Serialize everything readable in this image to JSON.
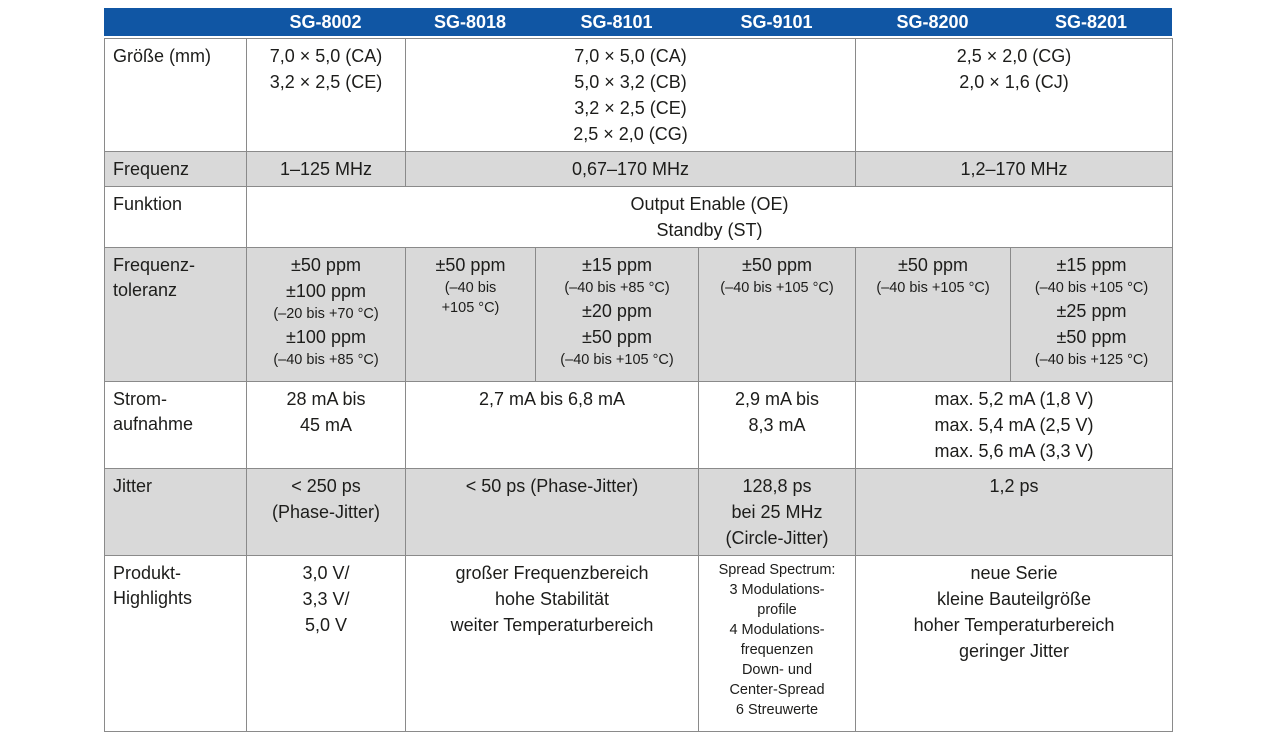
{
  "table": {
    "header": {
      "columns": [
        "",
        "SG-8002",
        "SG-8018",
        "SG-8101",
        "SG-9101",
        "SG-8200",
        "SG-8201"
      ],
      "background": "#1056a4",
      "text_color": "#ffffff"
    },
    "stripe_color": "#d9d9d9",
    "border_color": "#8a8a8a",
    "text_color": "#1d1d1b",
    "rows": [
      {
        "label_lines": [
          "Größe (mm)"
        ],
        "shaded": false,
        "cells": [
          {
            "colspan": 1,
            "lines": [
              {
                "text": "7,0 × 5,0 (CA)"
              },
              {
                "text": "3,2 × 2,5 (CE)"
              }
            ]
          },
          {
            "colspan": 3,
            "lines": [
              {
                "text": "7,0 × 5,0 (CA)"
              },
              {
                "text": "5,0 × 3,2 (CB)"
              },
              {
                "text": "3,2 × 2,5 (CE)"
              },
              {
                "text": "2,5 × 2,0 (CG)"
              }
            ]
          },
          {
            "colspan": 2,
            "lines": [
              {
                "text": "2,5 × 2,0 (CG)"
              },
              {
                "text": "2,0 × 1,6 (CJ)"
              }
            ]
          }
        ]
      },
      {
        "label_lines": [
          "Frequenz"
        ],
        "shaded": true,
        "cells": [
          {
            "colspan": 1,
            "lines": [
              {
                "text": "1–125 MHz"
              }
            ]
          },
          {
            "colspan": 3,
            "lines": [
              {
                "text": "0,67–170 MHz"
              }
            ]
          },
          {
            "colspan": 2,
            "lines": [
              {
                "text": "1,2–170 MHz"
              }
            ]
          }
        ]
      },
      {
        "label_lines": [
          "Funktion"
        ],
        "shaded": false,
        "cells": [
          {
            "colspan": 6,
            "lines": [
              {
                "text": "Output Enable (OE)"
              },
              {
                "text": "Standby (ST)"
              }
            ]
          }
        ]
      },
      {
        "label_lines": [
          "Frequenz-",
          "toleranz"
        ],
        "shaded": true,
        "cells": [
          {
            "colspan": 1,
            "lines": [
              {
                "text": "±50 ppm"
              },
              {
                "text": "±100 ppm"
              },
              {
                "text": "(–20 bis +70 °C)",
                "small": true
              },
              {
                "text": "±100 ppm"
              },
              {
                "text": "(–40 bis +85 °C)",
                "small": true
              }
            ]
          },
          {
            "colspan": 1,
            "lines": [
              {
                "text": "±50 ppm"
              },
              {
                "text": "(–40 bis",
                "small": true
              },
              {
                "text": "+105 °C)",
                "small": true
              }
            ]
          },
          {
            "colspan": 1,
            "lines": [
              {
                "text": "±15 ppm"
              },
              {
                "text": "(–40 bis +85 °C)",
                "small": true
              },
              {
                "text": "±20 ppm"
              },
              {
                "text": "±50 ppm"
              },
              {
                "text": "(–40 bis +105 °C)",
                "small": true
              }
            ]
          },
          {
            "colspan": 1,
            "lines": [
              {
                "text": "±50 ppm"
              },
              {
                "text": "(–40 bis +105 °C)",
                "small": true
              }
            ]
          },
          {
            "colspan": 1,
            "lines": [
              {
                "text": "±50 ppm"
              },
              {
                "text": "(–40 bis +105 °C)",
                "small": true
              }
            ]
          },
          {
            "colspan": 1,
            "lines": [
              {
                "text": "±15 ppm"
              },
              {
                "text": "(–40 bis +105 °C)",
                "small": true
              },
              {
                "text": "±25 ppm"
              },
              {
                "text": "±50 ppm"
              },
              {
                "text": "(–40 bis +125 °C)",
                "small": true
              }
            ]
          }
        ]
      },
      {
        "label_lines": [
          "Strom-",
          "aufnahme"
        ],
        "shaded": false,
        "cells": [
          {
            "colspan": 1,
            "lines": [
              {
                "text": "28 mA bis"
              },
              {
                "text": "45 mA"
              }
            ]
          },
          {
            "colspan": 2,
            "lines": [
              {
                "text": "2,7 mA bis 6,8 mA"
              }
            ]
          },
          {
            "colspan": 1,
            "lines": [
              {
                "text": "2,9 mA bis"
              },
              {
                "text": "8,3 mA"
              }
            ]
          },
          {
            "colspan": 2,
            "lines": [
              {
                "text": "max. 5,2 mA (1,8 V)"
              },
              {
                "text": "max. 5,4 mA (2,5 V)"
              },
              {
                "text": "max. 5,6 mA (3,3 V)"
              }
            ]
          }
        ]
      },
      {
        "label_lines": [
          "Jitter"
        ],
        "shaded": true,
        "cells": [
          {
            "colspan": 1,
            "lines": [
              {
                "text": "< 250 ps"
              },
              {
                "text": "(Phase-Jitter)"
              }
            ]
          },
          {
            "colspan": 2,
            "lines": [
              {
                "text": "< 50 ps (Phase-Jitter)"
              }
            ]
          },
          {
            "colspan": 1,
            "lines": [
              {
                "text": "128,8 ps"
              },
              {
                "text": "bei 25 MHz"
              },
              {
                "text": "(Circle-Jitter)"
              }
            ]
          },
          {
            "colspan": 2,
            "lines": [
              {
                "text": "1,2 ps"
              }
            ]
          }
        ]
      },
      {
        "label_lines": [
          "Produkt-",
          "Highlights"
        ],
        "shaded": false,
        "cells": [
          {
            "colspan": 1,
            "lines": [
              {
                "text": "3,0 V/"
              },
              {
                "text": "3,3 V/"
              },
              {
                "text": "5,0 V"
              }
            ]
          },
          {
            "colspan": 2,
            "lines": [
              {
                "text": "großer Frequenzbereich"
              },
              {
                "text": "hohe Stabilität"
              },
              {
                "text": "weiter Temperaturbereich"
              }
            ]
          },
          {
            "colspan": 1,
            "lines": [
              {
                "text": "Spread Spectrum:",
                "small": true
              },
              {
                "text": "3 Modulations-",
                "small": true
              },
              {
                "text": "profile",
                "small": true
              },
              {
                "text": "4 Modulations-",
                "small": true
              },
              {
                "text": "frequenzen",
                "small": true
              },
              {
                "text": "Down- und",
                "small": true
              },
              {
                "text": "Center-Spread",
                "small": true
              },
              {
                "text": "6 Streuwerte",
                "small": true
              }
            ]
          },
          {
            "colspan": 2,
            "lines": [
              {
                "text": "neue Serie"
              },
              {
                "text": "kleine Bauteilgröße"
              },
              {
                "text": "hoher Temperaturbereich"
              },
              {
                "text": "geringer Jitter"
              }
            ]
          }
        ]
      }
    ]
  }
}
